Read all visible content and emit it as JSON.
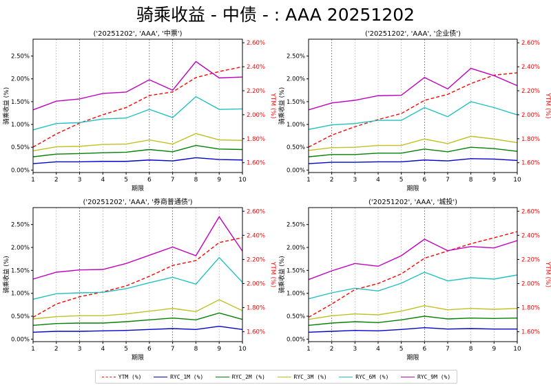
{
  "title": "骑乘收益 - 中债 - : AAA 20251202",
  "legend": [
    {
      "name": "YTM (%)",
      "color": "#ff0000",
      "dashed": true
    },
    {
      "name": "RYC_1M (%)",
      "color": "#0000cc"
    },
    {
      "name": "RYC_2M (%)",
      "color": "#008000"
    },
    {
      "name": "RYC_3M (%)",
      "color": "#c0c020"
    },
    {
      "name": "RYC_6M (%)",
      "color": "#20c0c0"
    },
    {
      "name": "RYC_9M (%)",
      "color": "#c000c0"
    }
  ],
  "chart_data": [
    {
      "type": "line",
      "title": "('20251202', 'AAA', '中票')",
      "xlabel": "期限",
      "ylabel": "骑乘收益 (%)",
      "ylabel_right": "YTM (%)",
      "x": [
        1,
        2,
        3,
        4,
        5,
        6,
        7,
        8,
        9,
        10
      ],
      "ylim": [
        -0.055,
        2.87
      ],
      "ylim_right": [
        1.518,
        2.63
      ],
      "yticks": [
        "0.00%",
        "0.50%",
        "1.00%",
        "1.50%",
        "2.00%",
        "2.50%"
      ],
      "yticks_right": [
        "1.60%",
        "1.80%",
        "2.00%",
        "2.20%",
        "2.40%",
        "2.60%"
      ],
      "dark_grid_x": [
        3,
        6,
        7
      ],
      "series": [
        {
          "name": "YTM (%)",
          "axis": "right",
          "values": [
            1.73,
            1.84,
            1.93,
            2.0,
            2.06,
            2.16,
            2.19,
            2.31,
            2.36,
            2.4
          ]
        },
        {
          "name": "RYC_1M (%)",
          "values": [
            0.14,
            0.18,
            0.18,
            0.19,
            0.19,
            0.22,
            0.2,
            0.27,
            0.23,
            0.22
          ]
        },
        {
          "name": "RYC_2M (%)",
          "values": [
            0.29,
            0.35,
            0.36,
            0.38,
            0.39,
            0.45,
            0.4,
            0.54,
            0.46,
            0.45
          ]
        },
        {
          "name": "RYC_3M (%)",
          "values": [
            0.42,
            0.51,
            0.52,
            0.56,
            0.57,
            0.66,
            0.57,
            0.8,
            0.66,
            0.65
          ]
        },
        {
          "name": "RYC_6M (%)",
          "values": [
            0.88,
            1.02,
            1.04,
            1.12,
            1.14,
            1.33,
            1.15,
            1.61,
            1.33,
            1.34
          ]
        },
        {
          "name": "RYC_9M (%)",
          "values": [
            1.32,
            1.51,
            1.56,
            1.68,
            1.71,
            1.98,
            1.75,
            2.38,
            2.02,
            2.04
          ]
        }
      ]
    },
    {
      "type": "line",
      "title": "('20251202', 'AAA', '企业债')",
      "xlabel": "期限",
      "ylabel": "骑乘收益 (%)",
      "ylabel_right": "YTM (%)",
      "x": [
        1,
        2,
        3,
        4,
        5,
        6,
        7,
        8,
        9,
        10
      ],
      "ylim": [
        -0.055,
        2.87
      ],
      "ylim_right": [
        1.518,
        2.63
      ],
      "yticks": [
        "0.00%",
        "0.50%",
        "1.00%",
        "1.50%",
        "2.00%",
        "2.50%"
      ],
      "yticks_right": [
        "1.60%",
        "1.80%",
        "2.00%",
        "2.20%",
        "2.40%",
        "2.60%"
      ],
      "dark_grid_x": [
        2,
        6
      ],
      "series": [
        {
          "name": "YTM (%)",
          "axis": "right",
          "values": [
            1.73,
            1.83,
            1.9,
            1.96,
            2.01,
            2.12,
            2.17,
            2.26,
            2.33,
            2.35
          ]
        },
        {
          "name": "RYC_1M (%)",
          "values": [
            0.14,
            0.17,
            0.17,
            0.18,
            0.18,
            0.22,
            0.2,
            0.25,
            0.24,
            0.21
          ]
        },
        {
          "name": "RYC_2M (%)",
          "values": [
            0.29,
            0.34,
            0.34,
            0.37,
            0.37,
            0.46,
            0.4,
            0.5,
            0.47,
            0.41
          ]
        },
        {
          "name": "RYC_3M (%)",
          "values": [
            0.43,
            0.49,
            0.5,
            0.54,
            0.54,
            0.68,
            0.58,
            0.74,
            0.68,
            0.6
          ]
        },
        {
          "name": "RYC_6M (%)",
          "values": [
            0.89,
            0.99,
            1.02,
            1.09,
            1.09,
            1.37,
            1.17,
            1.5,
            1.37,
            1.21
          ]
        },
        {
          "name": "RYC_9M (%)",
          "values": [
            1.32,
            1.47,
            1.53,
            1.63,
            1.64,
            2.03,
            1.78,
            2.23,
            2.07,
            1.85
          ]
        }
      ]
    },
    {
      "type": "line",
      "title": "('20251202', 'AAA', '券商普通债')",
      "xlabel": "期限",
      "ylabel": "骑乘收益 (%)",
      "ylabel_right": "YTM (%)",
      "x": [
        1,
        2,
        3,
        4,
        5,
        6,
        7,
        8,
        9,
        10
      ],
      "ylim": [
        -0.055,
        2.87
      ],
      "ylim_right": [
        1.518,
        2.63
      ],
      "yticks": [
        "0.00%",
        "0.50%",
        "1.00%",
        "1.50%",
        "2.00%",
        "2.50%"
      ],
      "yticks_right": [
        "1.60%",
        "1.80%",
        "2.00%",
        "2.20%",
        "2.40%",
        "2.60%"
      ],
      "dark_grid_x": [
        3,
        7
      ],
      "series": [
        {
          "name": "YTM (%)",
          "axis": "right",
          "values": [
            1.72,
            1.83,
            1.89,
            1.93,
            1.98,
            2.06,
            2.15,
            2.19,
            2.34,
            2.38
          ]
        },
        {
          "name": "RYC_1M (%)",
          "values": [
            0.15,
            0.17,
            0.17,
            0.18,
            0.19,
            0.21,
            0.23,
            0.21,
            0.28,
            0.21
          ]
        },
        {
          "name": "RYC_2M (%)",
          "values": [
            0.3,
            0.34,
            0.35,
            0.35,
            0.38,
            0.42,
            0.46,
            0.42,
            0.57,
            0.43
          ]
        },
        {
          "name": "RYC_3M (%)",
          "values": [
            0.44,
            0.49,
            0.51,
            0.51,
            0.55,
            0.61,
            0.67,
            0.6,
            0.86,
            0.62
          ]
        },
        {
          "name": "RYC_6M (%)",
          "values": [
            0.87,
            0.99,
            1.01,
            1.02,
            1.1,
            1.23,
            1.35,
            1.2,
            1.78,
            1.24
          ]
        },
        {
          "name": "RYC_9M (%)",
          "values": [
            1.31,
            1.46,
            1.51,
            1.52,
            1.65,
            1.83,
            2.01,
            1.82,
            2.67,
            1.92
          ]
        }
      ]
    },
    {
      "type": "line",
      "title": "('20251202', 'AAA', '城投')",
      "xlabel": "期限",
      "ylabel": "骑乘收益 (%)",
      "ylabel_right": "YTM (%)",
      "x": [
        1,
        2,
        3,
        4,
        5,
        6,
        7,
        8,
        9,
        10
      ],
      "ylim": [
        -0.055,
        2.87
      ],
      "ylim_right": [
        1.518,
        2.63
      ],
      "yticks": [
        "0.00%",
        "0.50%",
        "1.00%",
        "1.50%",
        "2.00%",
        "2.50%"
      ],
      "yticks_right": [
        "1.60%",
        "1.80%",
        "2.00%",
        "2.20%",
        "2.40%",
        "2.60%"
      ],
      "dark_grid_x": [
        2,
        6
      ],
      "series": [
        {
          "name": "YTM (%)",
          "axis": "right",
          "values": [
            1.72,
            1.83,
            1.95,
            2.0,
            2.08,
            2.21,
            2.27,
            2.33,
            2.38,
            2.43
          ]
        },
        {
          "name": "RYC_1M (%)",
          "values": [
            0.15,
            0.17,
            0.19,
            0.18,
            0.21,
            0.25,
            0.22,
            0.23,
            0.22,
            0.22
          ]
        },
        {
          "name": "RYC_2M (%)",
          "values": [
            0.3,
            0.35,
            0.38,
            0.36,
            0.42,
            0.5,
            0.44,
            0.46,
            0.45,
            0.46
          ]
        },
        {
          "name": "RYC_3M (%)",
          "values": [
            0.43,
            0.51,
            0.55,
            0.53,
            0.61,
            0.73,
            0.64,
            0.67,
            0.65,
            0.67
          ]
        },
        {
          "name": "RYC_6M (%)",
          "values": [
            0.88,
            1.01,
            1.11,
            1.05,
            1.22,
            1.46,
            1.27,
            1.34,
            1.31,
            1.4
          ]
        },
        {
          "name": "RYC_9M (%)",
          "values": [
            1.3,
            1.49,
            1.65,
            1.59,
            1.82,
            2.18,
            1.93,
            2.02,
            1.99,
            2.15
          ]
        }
      ]
    }
  ]
}
